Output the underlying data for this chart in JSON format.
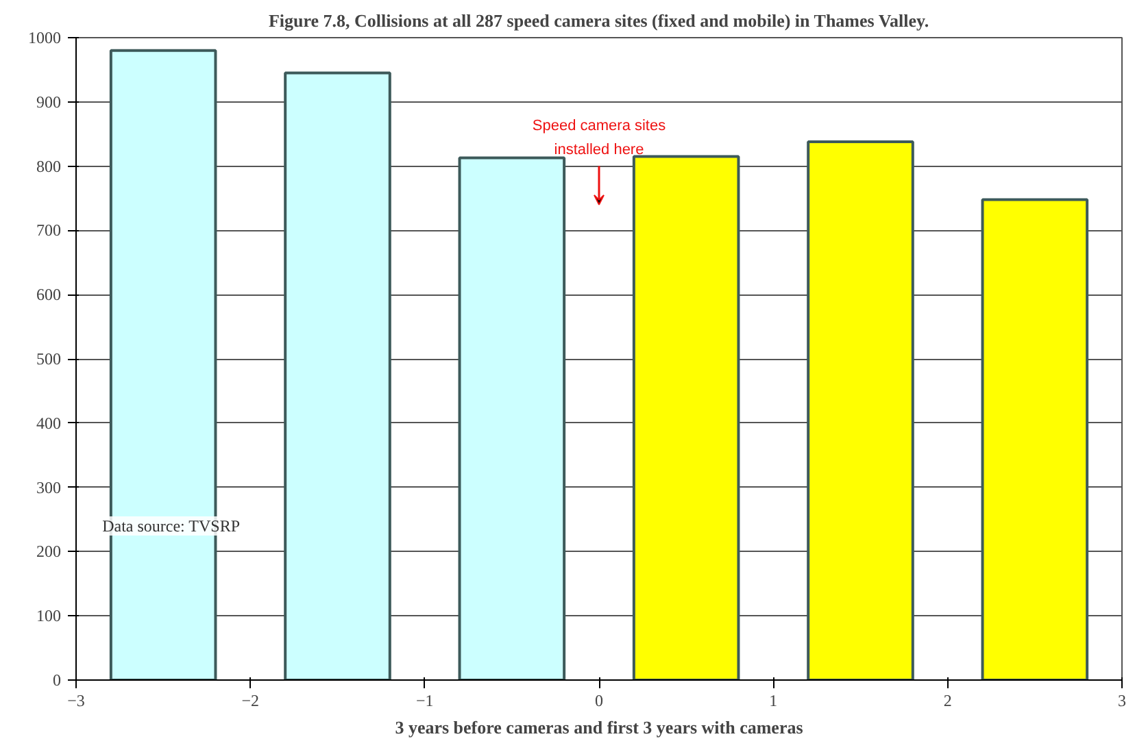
{
  "chart_data": {
    "type": "bar",
    "title": "Figure 7.8, Collisions at all 287 speed camera sites (fixed and mobile) in Thames Valley.",
    "xlabel": "3 years before cameras and first 3 years with cameras",
    "x": [
      -2.5,
      -1.5,
      -0.5,
      0.5,
      1.5,
      2.5
    ],
    "values": [
      980,
      945,
      813,
      815,
      838,
      748
    ],
    "colors": [
      "#ccffff",
      "#ccffff",
      "#ccffff",
      "#ffff00",
      "#ffff00",
      "#ffff00"
    ],
    "xlim": [
      -3,
      3
    ],
    "xticks": [
      -3,
      -2,
      -1,
      0,
      1,
      2,
      3
    ],
    "ylim": [
      0,
      1000
    ],
    "yticks": [
      0,
      100,
      200,
      300,
      400,
      500,
      600,
      700,
      800,
      900,
      1000
    ],
    "grid": "y",
    "annotations": [
      "Speed camera sites installed here",
      "Data source: TVSRP"
    ]
  }
}
